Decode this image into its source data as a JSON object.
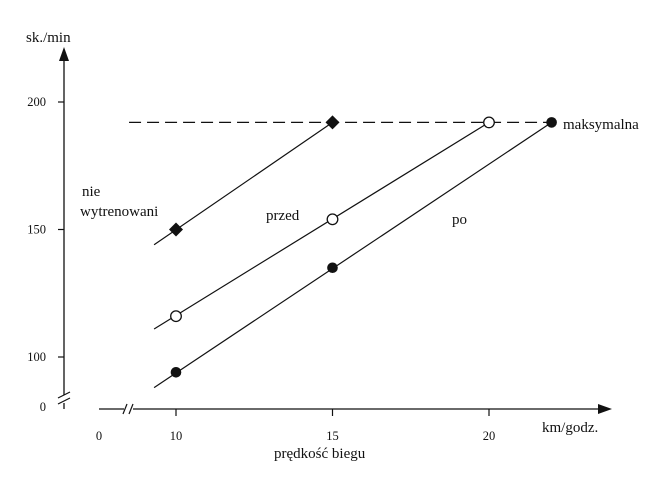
{
  "chart_data": {
    "type": "line",
    "ylabel": "sk./min",
    "xlabel": "prędkość biegu",
    "x_unit": "km/godz.",
    "xlim": [
      0,
      24
    ],
    "ylim": [
      0,
      225
    ],
    "axis_breaks": "both",
    "grid": false,
    "x_ticks": [
      0,
      10,
      15,
      20
    ],
    "y_ticks": [
      0,
      100,
      150,
      200
    ],
    "series": [
      {
        "name": "nie wytrenowani",
        "marker": "diamond-filled",
        "line": [
          [
            9.3,
            144
          ],
          [
            15,
            192
          ]
        ],
        "points": [
          [
            10,
            150
          ],
          [
            15,
            192
          ]
        ]
      },
      {
        "name": "przed",
        "marker": "circle-open",
        "line": [
          [
            9.3,
            111
          ],
          [
            20,
            192
          ]
        ],
        "points": [
          [
            10,
            116
          ],
          [
            15,
            154
          ],
          [
            20,
            192
          ]
        ]
      },
      {
        "name": "po",
        "marker": "circle-filled",
        "line": [
          [
            9.3,
            88
          ],
          [
            22,
            192
          ]
        ],
        "points": [
          [
            10,
            94
          ],
          [
            15,
            135
          ],
          [
            22,
            192
          ]
        ]
      }
    ],
    "reference_line": {
      "y": 192,
      "x_from": 8.5,
      "x_to": 22,
      "style": "dashed",
      "label": "maksymalna"
    },
    "colors": {
      "ink": "#111111",
      "background": "#ffffff"
    }
  }
}
